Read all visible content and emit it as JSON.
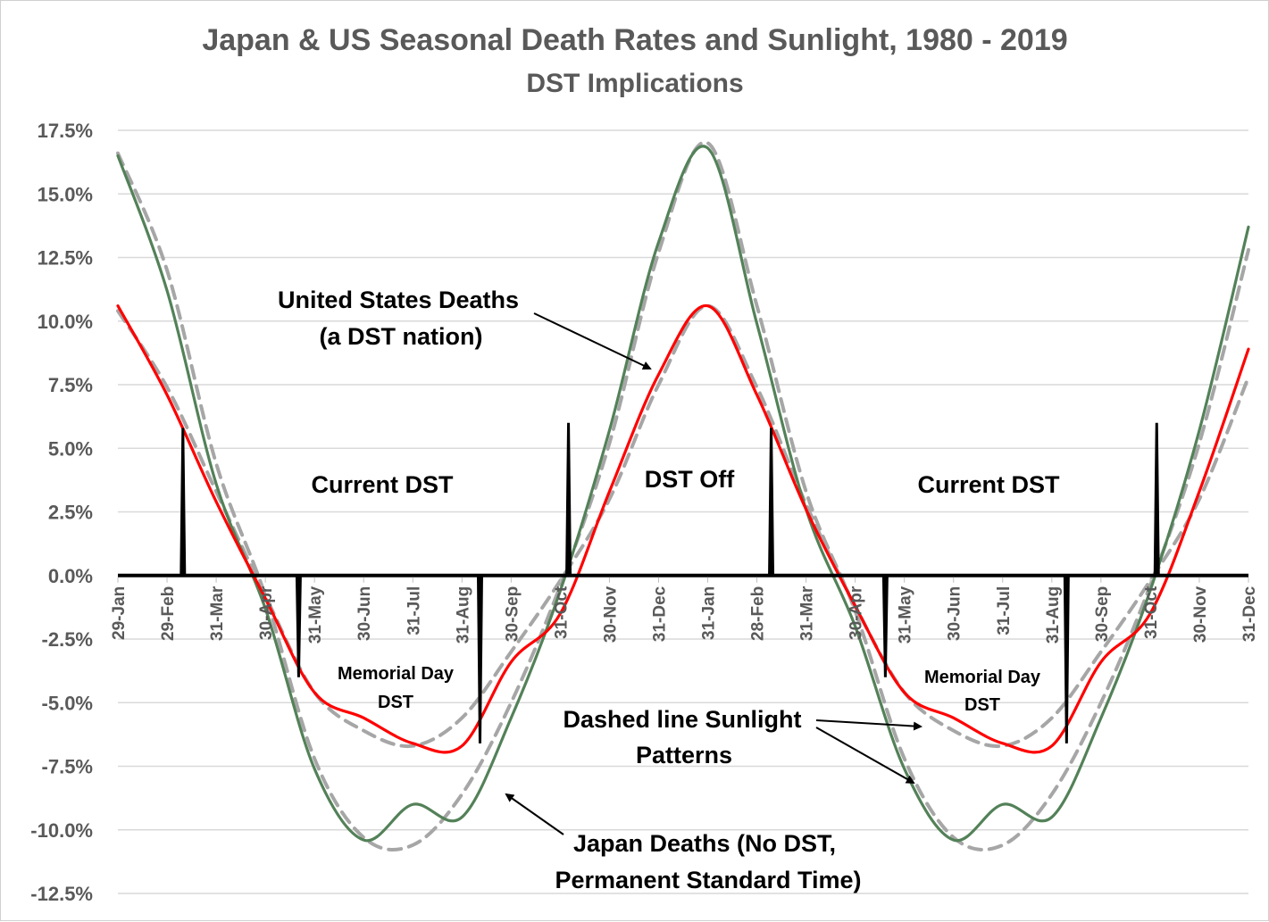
{
  "chart_data": {
    "type": "line",
    "title": "Japan & US Seasonal Death Rates and Sunlight, 1980 - 2019",
    "subtitle": "DST Implications",
    "xlabel": "",
    "ylabel": "",
    "ylim": [
      -12.5,
      17.5
    ],
    "yticks": [
      "17.5%",
      "15.0%",
      "12.5%",
      "10.0%",
      "7.5%",
      "5.0%",
      "2.5%",
      "0.0%",
      "-2.5%",
      "-5.0%",
      "-7.5%",
      "-10.0%",
      "-12.5%"
    ],
    "ytick_values": [
      17.5,
      15,
      12.5,
      10,
      7.5,
      5,
      2.5,
      0,
      -2.5,
      -5,
      -7.5,
      -10,
      -12.5
    ],
    "grid": true,
    "legend": "none",
    "categories": [
      "29-Jan",
      "29-Feb",
      "31-Mar",
      "30-Apr",
      "31-May",
      "30-Jun",
      "31-Jul",
      "31-Aug",
      "30-Sep",
      "31-Oct",
      "30-Nov",
      "31-Dec",
      "31-Jan",
      "28-Feb",
      "31-Mar",
      "30-Apr",
      "31-May",
      "30-Jun",
      "31-Jul",
      "31-Aug",
      "30-Sep",
      "31-Oct",
      "30-Nov",
      "31-Dec"
    ],
    "series": [
      {
        "key": "japan-deaths",
        "color": "#538158",
        "dashed": false,
        "values": [
          16.5,
          11.2,
          3.6,
          -1.3,
          -7.6,
          -10.4,
          -9.0,
          -9.5,
          -5.6,
          -0.6,
          5.7,
          13.1,
          16.8,
          9.9,
          2.6,
          -2.0,
          -7.6,
          -10.4,
          -9.0,
          -9.5,
          -5.6,
          -0.6,
          5.7,
          13.7
        ]
      },
      {
        "key": "us-deaths",
        "color": "#ff0000",
        "dashed": false,
        "values": [
          10.6,
          7.1,
          2.9,
          -0.9,
          -4.6,
          -5.6,
          -6.6,
          -6.7,
          -3.4,
          -1.5,
          3.3,
          7.9,
          10.6,
          7.1,
          2.6,
          -1.2,
          -4.6,
          -5.6,
          -6.6,
          -6.7,
          -3.4,
          -1.5,
          3.3,
          8.9
        ]
      },
      {
        "key": "japan-sunlight",
        "color": "#a6a6a6",
        "dashed": true,
        "values": [
          16.6,
          12.0,
          4.4,
          -0.8,
          -7.2,
          -10.3,
          -10.6,
          -8.6,
          -5.0,
          -0.4,
          5.2,
          12.7,
          17.0,
          10.6,
          3.3,
          -1.4,
          -7.2,
          -10.3,
          -10.6,
          -8.6,
          -5.0,
          -0.4,
          5.2,
          12.8
        ]
      },
      {
        "key": "us-sunlight",
        "color": "#a6a6a6",
        "dashed": true,
        "values": [
          10.4,
          7.4,
          3.3,
          -0.8,
          -4.6,
          -6.1,
          -6.7,
          -5.6,
          -3.0,
          -0.2,
          3.0,
          7.5,
          10.6,
          7.4,
          2.8,
          -1.2,
          -4.6,
          -6.1,
          -6.7,
          -5.6,
          -3.0,
          -0.2,
          3.0,
          7.8
        ]
      }
    ],
    "dst_markers": [
      {
        "date": "10-Mar",
        "cycle": 1,
        "value": 5.8
      },
      {
        "date": "21-May",
        "cycle": 1,
        "value": -4.0
      },
      {
        "date": "11-Sep",
        "cycle": 1,
        "value": -6.6
      },
      {
        "date": "5-Nov",
        "cycle": 1,
        "value": 6.0
      },
      {
        "date": "9-Mar",
        "cycle": 2,
        "value": 5.8
      },
      {
        "date": "19-May",
        "cycle": 2,
        "value": -4.0
      },
      {
        "date": "9-Sep",
        "cycle": 2,
        "value": -6.6
      },
      {
        "date": "4-Nov",
        "cycle": 2,
        "value": 6.0
      }
    ],
    "annotations": {
      "us_deaths_line1": "United States Deaths",
      "us_deaths_line2": "(a DST nation)",
      "current_dst_1": "Current DST",
      "dst_off": "DST Off",
      "current_dst_2": "Current DST",
      "memorial_1_line1": "Memorial Day",
      "memorial_1_line2": "DST",
      "memorial_2_line1": "Memorial Day",
      "memorial_2_line2": "DST",
      "sunlight_line1": "Dashed line Sunlight",
      "sunlight_line2": "Patterns",
      "japan_line1": "Japan Deaths (No DST,",
      "japan_line2": "Permanent Standard Time)"
    }
  }
}
